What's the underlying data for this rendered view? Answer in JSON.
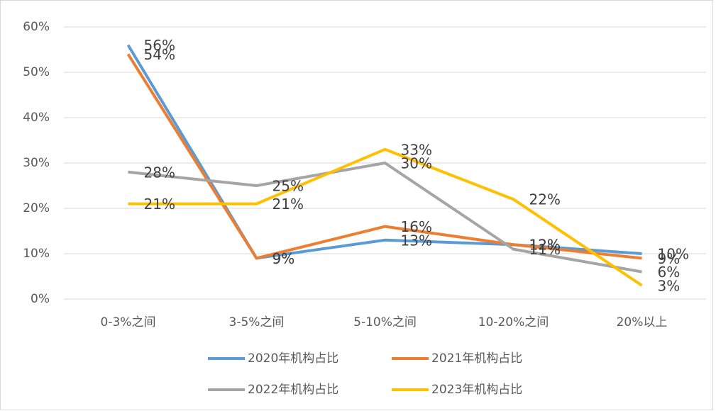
{
  "chart_data": {
    "type": "line",
    "categories": [
      "0-3%之间",
      "3-5%之间",
      "5-10%之间",
      "10-20%之间",
      "20%以上"
    ],
    "series": [
      {
        "name": "2020年机构占比",
        "color": "#5b9bd5",
        "values": [
          56,
          9,
          13,
          12,
          10
        ],
        "value_labels": [
          "56%",
          "9%",
          "13%",
          "12%",
          "10%"
        ]
      },
      {
        "name": "2021年机构占比",
        "color": "#ed7d31",
        "values": [
          54,
          9,
          16,
          12,
          9
        ],
        "value_labels": [
          "54%",
          "9%",
          "16%",
          "12%",
          "9%"
        ]
      },
      {
        "name": "2022年机构占比",
        "color": "#a5a5a5",
        "values": [
          28,
          25,
          30,
          11,
          6
        ],
        "value_labels": [
          "28%",
          "25%",
          "30%",
          "11%",
          "6%"
        ]
      },
      {
        "name": "2023年机构占比",
        "color": "#ffc000",
        "values": [
          21,
          21,
          33,
          22,
          3
        ],
        "value_labels": [
          "21%",
          "21%",
          "33%",
          "22%",
          "3%"
        ]
      }
    ],
    "ylim": [
      0,
      60
    ],
    "yticks": [
      {
        "value": 0,
        "label": "0%"
      },
      {
        "value": 10,
        "label": "10%"
      },
      {
        "value": 20,
        "label": "20%"
      },
      {
        "value": 30,
        "label": "30%"
      },
      {
        "value": 40,
        "label": "40%"
      },
      {
        "value": 50,
        "label": "50%"
      },
      {
        "value": 60,
        "label": "60%"
      }
    ],
    "grid": true
  }
}
